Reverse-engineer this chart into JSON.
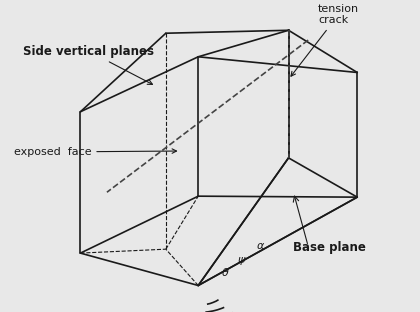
{
  "bg_color": "#e8e8e8",
  "line_color": "#1a1a1a",
  "dashed_color": "#444444",
  "title_color": "#000000",
  "figsize": [
    4.2,
    3.12
  ],
  "dpi": 100,
  "labels": {
    "side_vertical": "Side vertical planes",
    "exposed_face": "exposed  face",
    "tension_crack": "tension\ncrack",
    "base_plane": "Base plane",
    "psi": "ψ",
    "theta": "θ",
    "alpha": "α"
  }
}
